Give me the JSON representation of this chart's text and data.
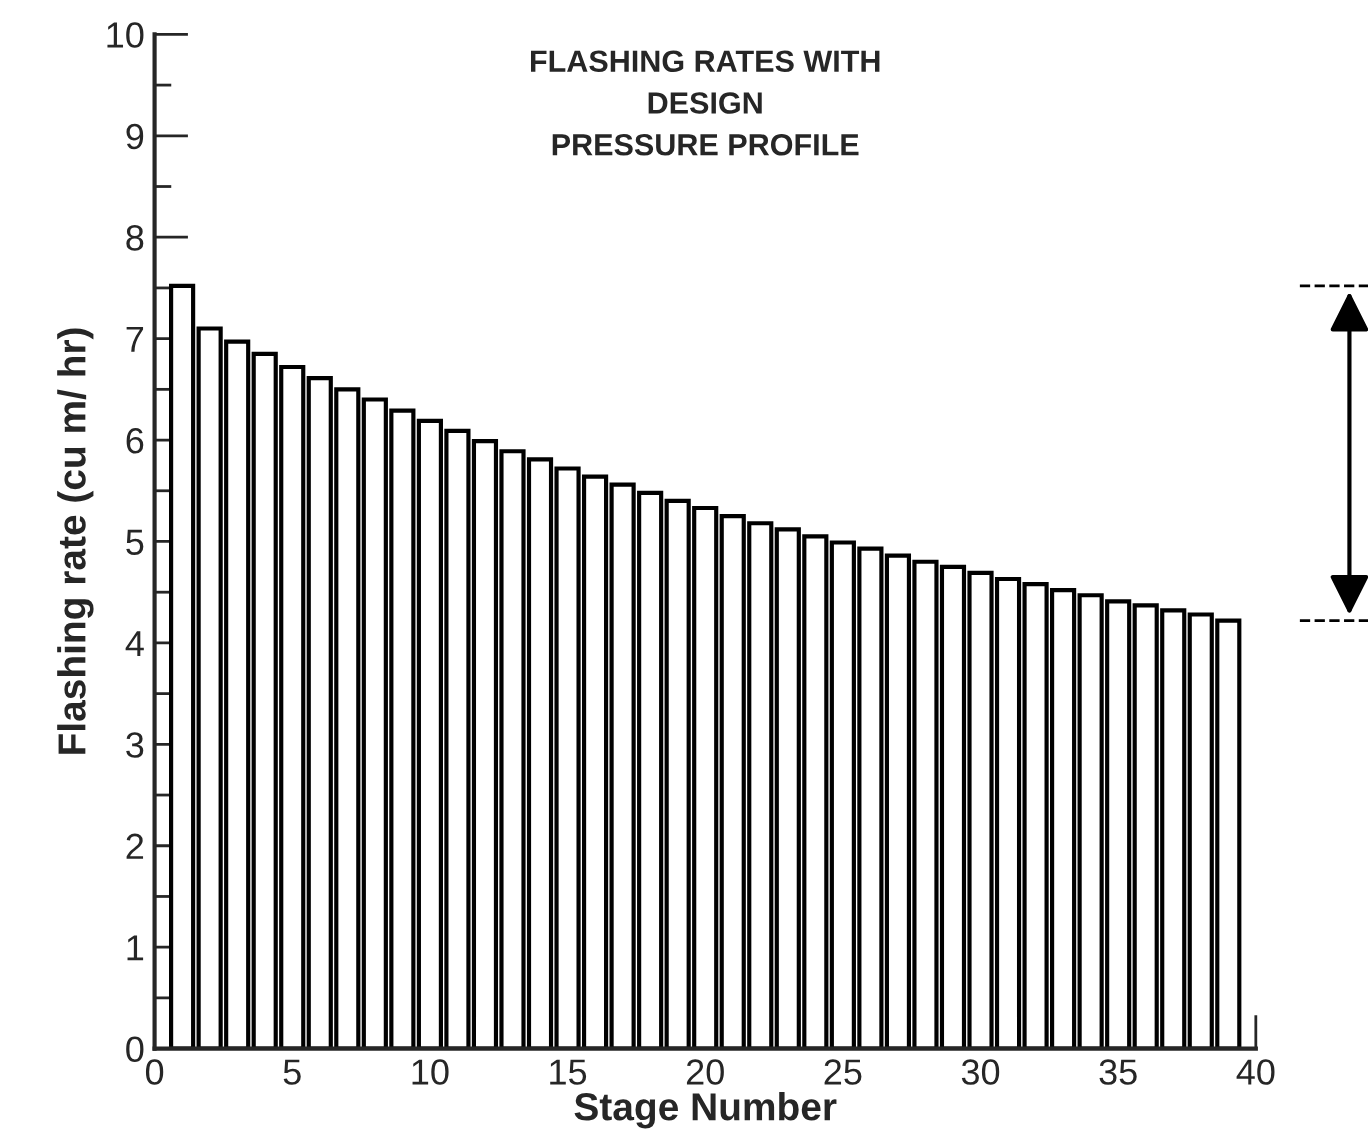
{
  "chart_data": {
    "type": "bar",
    "title": "FLASHING RATES WITH\nDESIGN\nPRESSURE PROFILE",
    "xlabel": "Stage Number",
    "ylabel": "Flashing rate (cu m/ hr)",
    "x": [
      1,
      2,
      3,
      4,
      5,
      6,
      7,
      8,
      9,
      10,
      11,
      12,
      13,
      14,
      15,
      16,
      17,
      18,
      19,
      20,
      21,
      22,
      23,
      24,
      25,
      26,
      27,
      28,
      29,
      30,
      31,
      32,
      33,
      34,
      35,
      36,
      37,
      38,
      39
    ],
    "values": [
      7.52,
      7.1,
      6.97,
      6.85,
      6.72,
      6.61,
      6.5,
      6.4,
      6.29,
      6.19,
      6.09,
      5.99,
      5.89,
      5.81,
      5.72,
      5.64,
      5.56,
      5.48,
      5.4,
      5.33,
      5.25,
      5.18,
      5.12,
      5.05,
      4.99,
      4.93,
      4.86,
      4.8,
      4.75,
      4.69,
      4.63,
      4.58,
      4.52,
      4.47,
      4.41,
      4.37,
      4.32,
      4.28,
      4.22
    ],
    "color": "#ffffff",
    "xlim": [
      0,
      40
    ],
    "xticks": [
      0,
      5,
      10,
      15,
      20,
      25,
      30,
      35,
      40
    ],
    "ylim": [
      0,
      10
    ],
    "yticks": [
      0,
      1,
      2,
      3,
      4,
      5,
      6,
      7,
      8,
      9,
      10
    ],
    "grid": false,
    "legend": false
  }
}
